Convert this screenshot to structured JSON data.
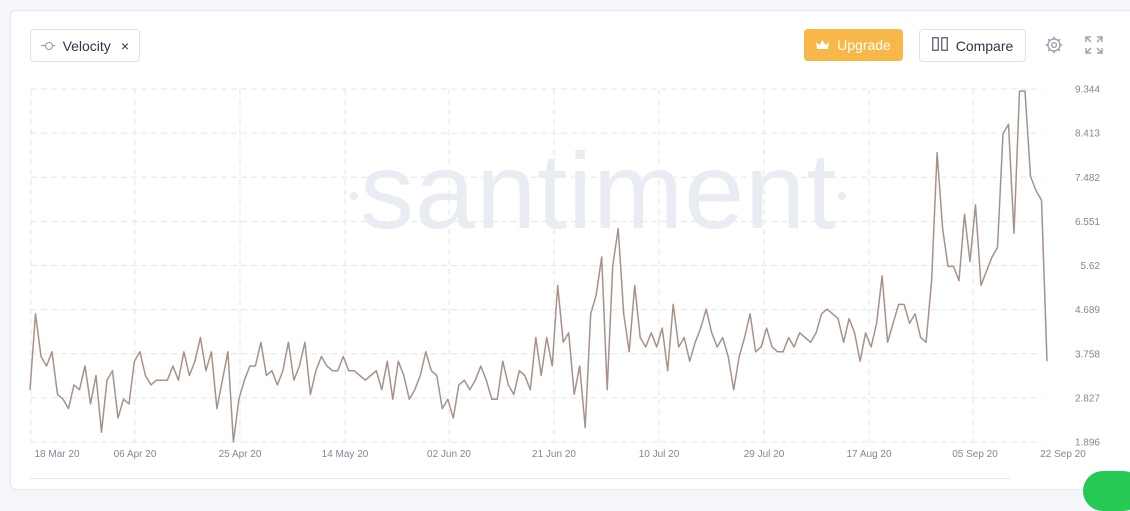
{
  "toolbar": {
    "metric_label": "Velocity",
    "close_glyph": "×",
    "upgrade_label": "Upgrade",
    "compare_label": "Compare"
  },
  "icons": {
    "metric": "line-marker-icon",
    "upgrade": "crown-icon",
    "compare": "columns-icon",
    "settings": "gear-icon",
    "fullscreen": "expand-icon"
  },
  "colors": {
    "series": "#a89288",
    "upgrade": "#f7b749",
    "grid": "#e1e5ec",
    "watermark": "#e9ecf3"
  },
  "watermark": "santiment",
  "chart_data": {
    "type": "line",
    "series": [
      {
        "name": "Velocity",
        "x_start": "2020-03-16",
        "values": [
          3.0,
          4.6,
          3.7,
          3.5,
          3.8,
          2.9,
          2.8,
          2.6,
          3.1,
          3.0,
          3.5,
          2.7,
          3.3,
          2.1,
          3.2,
          3.4,
          2.4,
          2.8,
          2.7,
          3.6,
          3.8,
          3.3,
          3.1,
          3.2,
          3.2,
          3.2,
          3.5,
          3.2,
          3.8,
          3.3,
          3.6,
          4.1,
          3.4,
          3.8,
          2.6,
          3.2,
          3.8,
          1.9,
          2.8,
          3.2,
          3.5,
          3.5,
          4.0,
          3.3,
          3.4,
          3.1,
          3.4,
          4.0,
          3.2,
          3.5,
          4.0,
          2.9,
          3.4,
          3.7,
          3.5,
          3.4,
          3.4,
          3.7,
          3.4,
          3.4,
          3.3,
          3.2,
          3.3,
          3.4,
          3.0,
          3.6,
          2.8,
          3.6,
          3.3,
          2.8,
          3.0,
          3.3,
          3.8,
          3.4,
          3.3,
          2.6,
          2.8,
          2.4,
          3.1,
          3.2,
          3.0,
          3.2,
          3.5,
          3.2,
          2.8,
          2.8,
          3.6,
          3.1,
          2.9,
          3.4,
          3.3,
          3.0,
          4.1,
          3.3,
          4.1,
          3.5,
          5.2,
          4.0,
          4.2,
          2.9,
          3.5,
          2.2,
          4.6,
          5.0,
          5.8,
          3.0,
          5.6,
          6.4,
          4.6,
          3.8,
          5.2,
          4.1,
          3.9,
          4.2,
          3.9,
          4.3,
          3.4,
          4.8,
          3.9,
          4.1,
          3.6,
          4.0,
          4.3,
          4.7,
          4.2,
          3.9,
          4.1,
          3.7,
          3.0,
          3.7,
          4.1,
          4.6,
          3.8,
          3.9,
          4.3,
          3.9,
          3.8,
          3.8,
          4.1,
          3.9,
          4.2,
          4.1,
          4.0,
          4.2,
          4.6,
          4.7,
          4.6,
          4.5,
          4.0,
          4.5,
          4.2,
          3.6,
          4.2,
          3.9,
          4.4,
          5.4,
          4.0,
          4.4,
          4.8,
          4.8,
          4.4,
          4.6,
          4.1,
          4.0,
          5.3,
          8.0,
          6.4,
          5.6,
          5.6,
          5.3,
          6.7,
          5.7,
          6.9,
          5.2,
          5.5,
          5.8,
          6.0,
          8.4,
          8.6,
          6.3,
          9.3,
          9.3,
          7.5,
          7.2,
          7.0,
          3.6
        ]
      }
    ],
    "x_tick_labels": [
      "18 Mar 20",
      "06 Apr 20",
      "25 Apr 20",
      "14 May 20",
      "02 Jun 20",
      "21 Jun 20",
      "10 Jul 20",
      "29 Jul 20",
      "17 Aug 20",
      "05 Sep 20",
      "22 Sep 20"
    ],
    "y_tick_labels": [
      "9.344",
      "8.413",
      "7.482",
      "6.551",
      "5.62",
      "4.689",
      "3.758",
      "2.827",
      "1.896"
    ],
    "ylim": [
      1.896,
      9.344
    ],
    "grid": true,
    "y_axis_side": "right"
  }
}
